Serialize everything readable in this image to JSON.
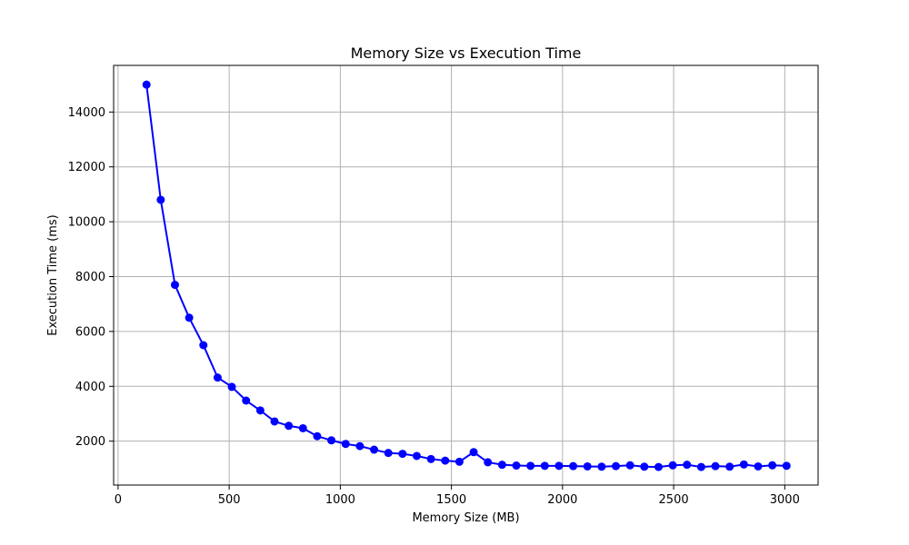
{
  "chart_data": {
    "type": "line",
    "title": "Memory Size vs Execution Time",
    "xlabel": "Memory Size (MB)",
    "ylabel": "Execution Time (ms)",
    "xlim": [
      -20,
      3150
    ],
    "ylim": [
      400,
      15700
    ],
    "xticks": [
      0,
      500,
      1000,
      1500,
      2000,
      2500,
      3000
    ],
    "yticks": [
      2000,
      4000,
      6000,
      8000,
      10000,
      12000,
      14000
    ],
    "grid": true,
    "series": [
      {
        "color": "#0000ff",
        "marker": "circle",
        "x": [
          128,
          192,
          256,
          320,
          384,
          448,
          512,
          576,
          640,
          704,
          768,
          832,
          896,
          960,
          1024,
          1088,
          1152,
          1216,
          1280,
          1344,
          1408,
          1472,
          1536,
          1600,
          1664,
          1728,
          1792,
          1856,
          1920,
          1984,
          2048,
          2112,
          2176,
          2240,
          2304,
          2368,
          2432,
          2496,
          2560,
          2624,
          2688,
          2752,
          2816,
          2880,
          2944,
          3008
        ],
        "y": [
          15000,
          10800,
          7700,
          6500,
          5500,
          4320,
          3980,
          3480,
          3120,
          2720,
          2560,
          2470,
          2180,
          2030,
          1900,
          1820,
          1690,
          1570,
          1540,
          1460,
          1350,
          1290,
          1250,
          1600,
          1230,
          1140,
          1110,
          1100,
          1100,
          1100,
          1090,
          1080,
          1070,
          1090,
          1120,
          1070,
          1060,
          1120,
          1140,
          1060,
          1090,
          1070,
          1150,
          1080,
          1120,
          1100
        ]
      }
    ]
  }
}
